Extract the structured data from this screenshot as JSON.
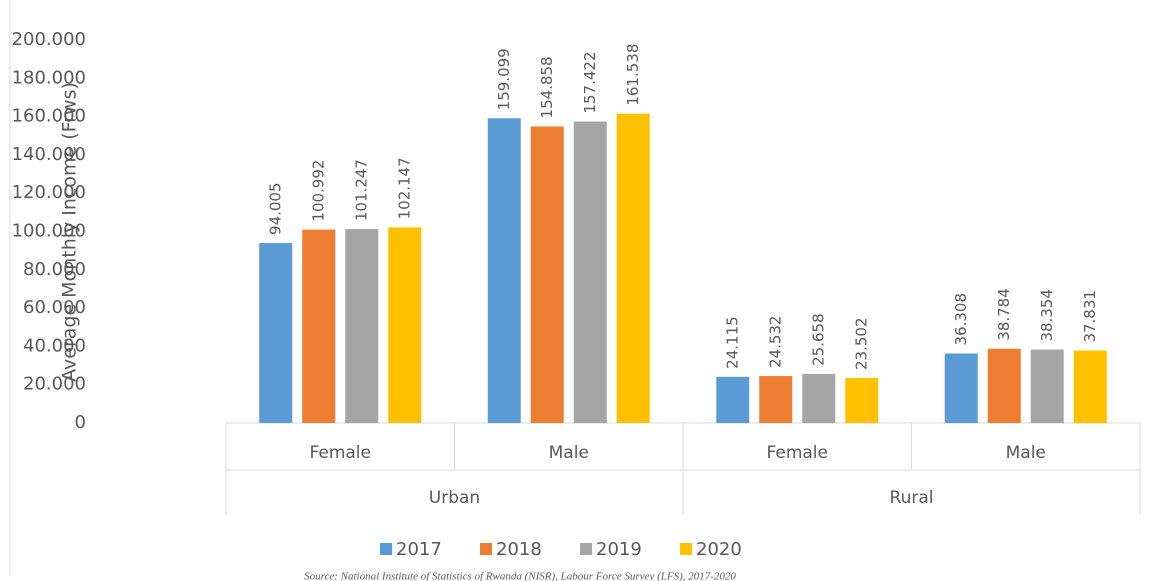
{
  "chart_data": {
    "type": "bar",
    "y_axis_label": "Average Monthly Income (Frws)",
    "categories": [
      "Female",
      "Male",
      "Female",
      "Male"
    ],
    "groups": [
      "Urban",
      "Urban",
      "Rural",
      "Rural"
    ],
    "series": [
      {
        "name": "2017",
        "color": "#5b9bd5",
        "values": [
          94005,
          159099,
          24115,
          36308
        ],
        "value_labels": [
          "94.005",
          "159.099",
          "24.115",
          "36.308"
        ]
      },
      {
        "name": "2018",
        "color": "#ed7d31",
        "values": [
          100992,
          154858,
          24532,
          38784
        ],
        "value_labels": [
          "100.992",
          "154.858",
          "24.532",
          "38.784"
        ]
      },
      {
        "name": "2019",
        "color": "#a5a5a5",
        "values": [
          101247,
          157422,
          25658,
          38354
        ],
        "value_labels": [
          "101.247",
          "157.422",
          "25.658",
          "38.354"
        ]
      },
      {
        "name": "2020",
        "color": "#ffc000",
        "values": [
          102147,
          161538,
          23502,
          37831
        ],
        "value_labels": [
          "102.147",
          "161.538",
          "23.502",
          "37.831"
        ]
      }
    ],
    "ylim": [
      0,
      200000
    ],
    "yticks": [
      0,
      {
        "value": 20000,
        "label": "20.000"
      },
      {
        "value": 40000,
        "label": "40.000"
      },
      {
        "value": 60000,
        "label": "60.000"
      },
      {
        "value": 80000,
        "label": "80.000"
      },
      {
        "value": 100000,
        "label": "100.000"
      },
      {
        "value": 120000,
        "label": "120.000"
      },
      {
        "value": 140000,
        "label": "140.000"
      },
      {
        "value": 160000,
        "label": "160.000"
      },
      {
        "value": 180000,
        "label": "180.000"
      },
      {
        "value": 200000,
        "label": "200.000"
      }
    ],
    "legend": "bottom",
    "source": "Source: National Institute of Statistics of Rwanda (NISR), Labour Force Survey (LFS), 2017-2020"
  }
}
